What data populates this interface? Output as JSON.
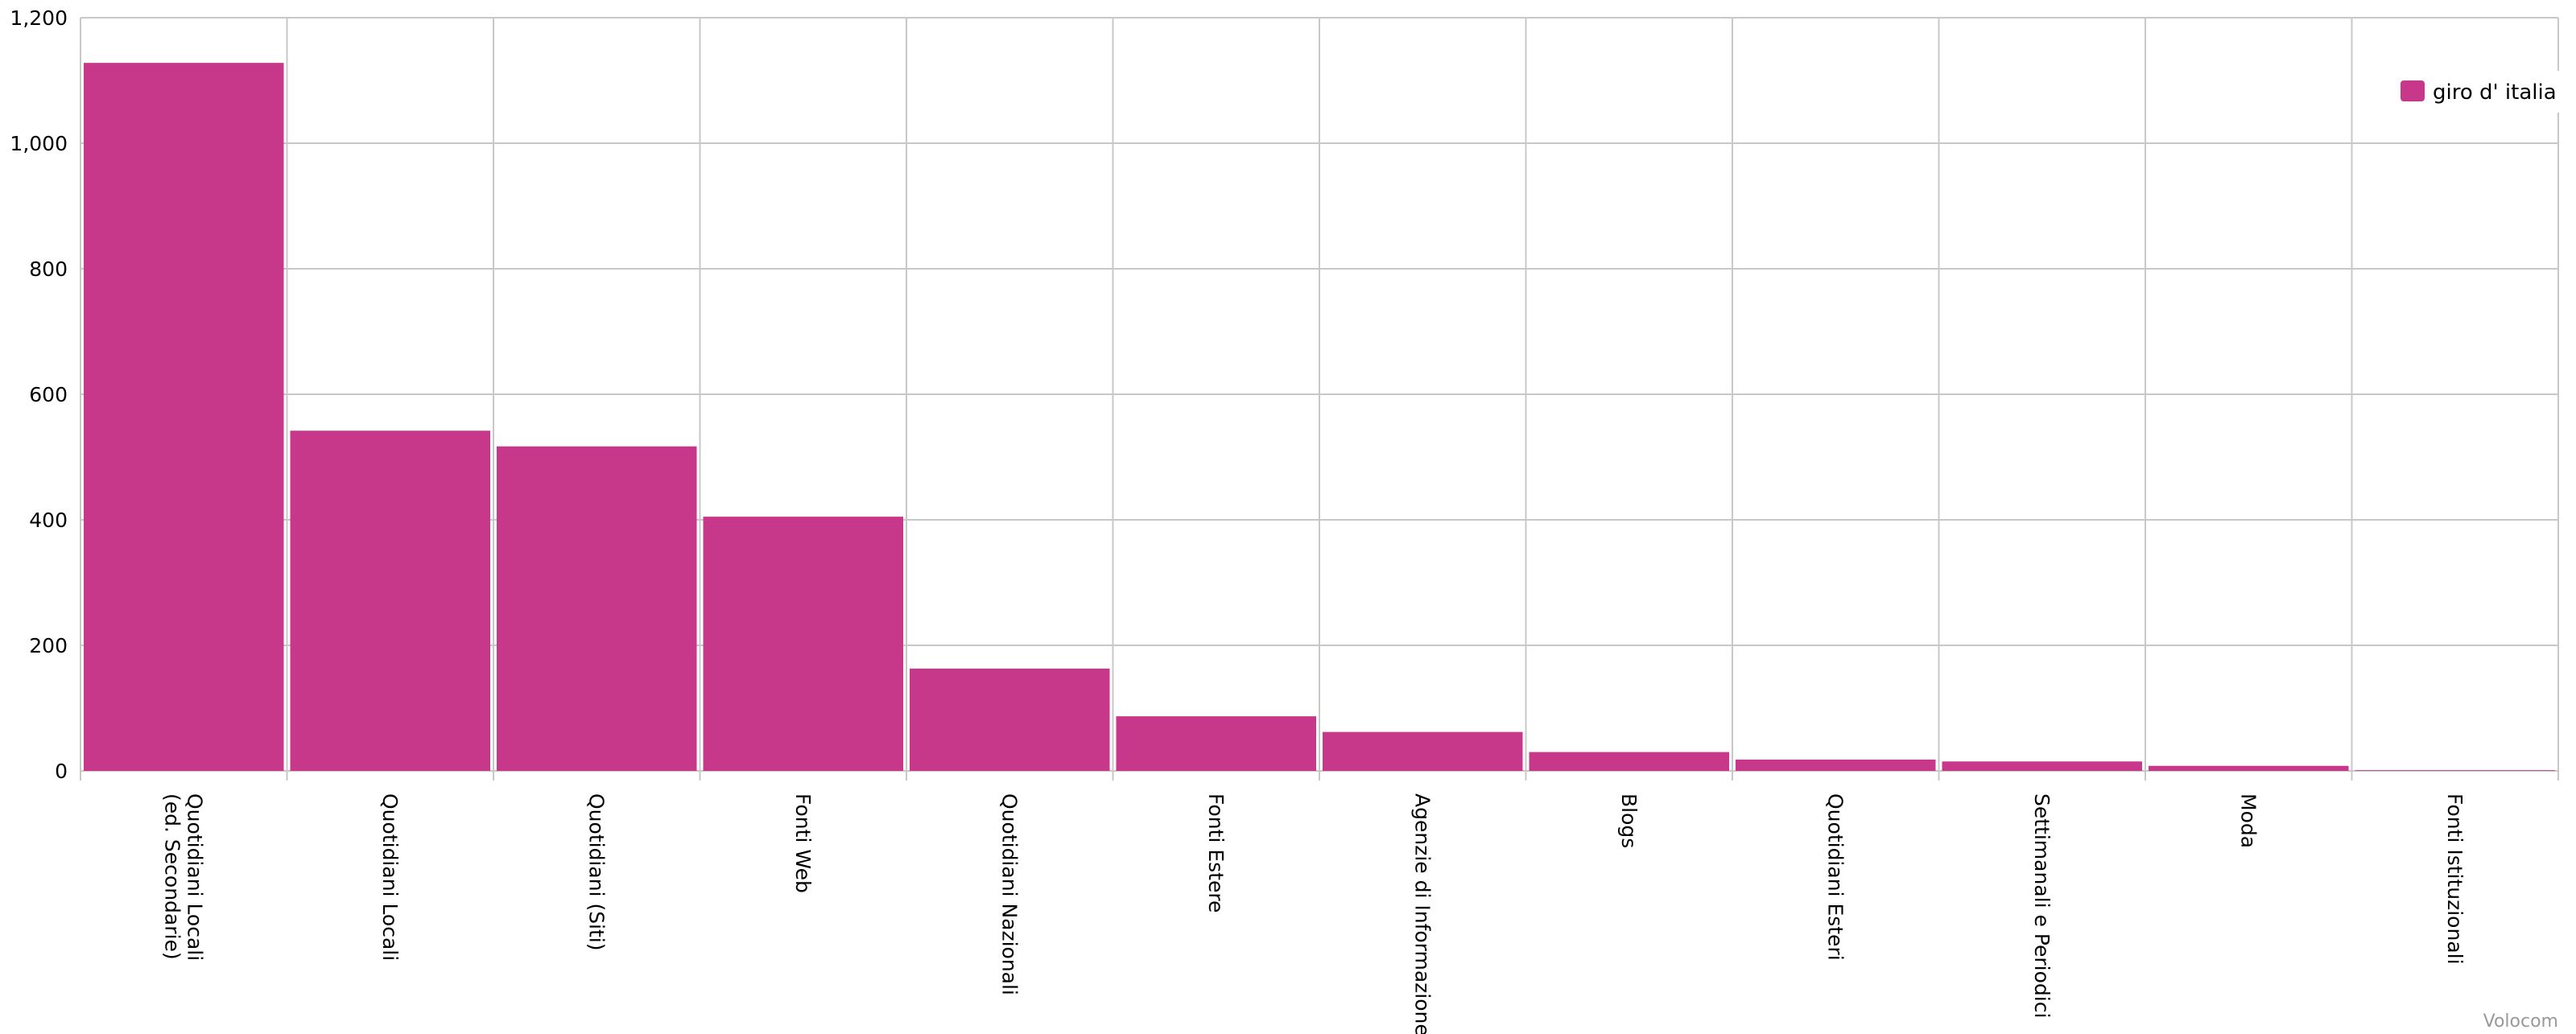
{
  "chart_data": {
    "type": "bar",
    "categories": [
      "Quotidiani Locali\n(ed. Secondarie)",
      "Quotidiani Locali",
      "Quotidiani (Siti)",
      "Fonti Web",
      "Quotidiani Nazionali",
      "Fonti Estere",
      "Agenzie di Informazione",
      "Blogs",
      "Quotidiani Esteri",
      "Settimanali e Periodici",
      "Moda",
      "Fonti Istituzionali"
    ],
    "series": [
      {
        "name": "giro d' italia",
        "color": "#c8388a",
        "values": [
          1128,
          542,
          517,
          405,
          163,
          87,
          62,
          30,
          18,
          15,
          8,
          1
        ]
      }
    ],
    "yticks": [
      "0",
      "200",
      "400",
      "600",
      "800",
      "1,000",
      "1,200"
    ],
    "ylim": [
      0,
      1200
    ],
    "grid": true,
    "legend_position": "top-right",
    "credit": "Volocom"
  }
}
